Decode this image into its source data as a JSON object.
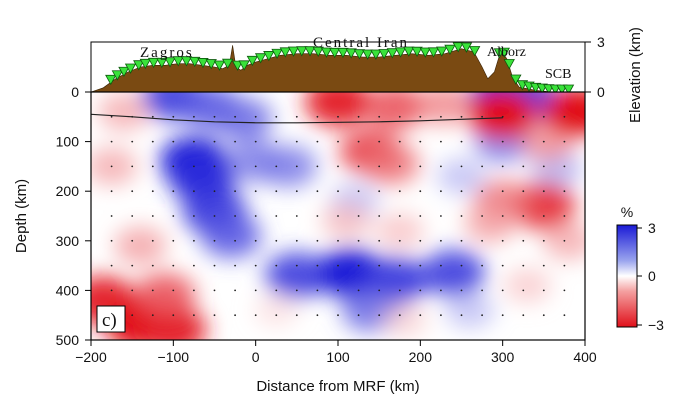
{
  "chart_data": {
    "type": "heatmap",
    "panel_label": "c)",
    "xlabel": "Distance from MRF (km)",
    "ylabel": "Depth (km)",
    "y2label": "Elevation (km)",
    "xlim": [
      -200,
      400
    ],
    "ylim": [
      500,
      0
    ],
    "elev_lim": [
      0,
      3
    ],
    "xticks": [
      "−200",
      "−100",
      "0",
      "100",
      "200",
      "300",
      "400"
    ],
    "yticks": [
      "0",
      "100",
      "200",
      "300",
      "400",
      "500"
    ],
    "elev_ticks": [
      "0",
      "3"
    ],
    "colorbar": {
      "unit": "%",
      "ticks": [
        "3",
        "0",
        "−3"
      ],
      "range": [
        -3,
        3
      ]
    },
    "regions": [
      "Zagros",
      "Central Iran",
      "Alborz",
      "SCB"
    ],
    "topography": {
      "x": [
        -200,
        -185,
        -170,
        -155,
        -140,
        -125,
        -110,
        -95,
        -80,
        -65,
        -50,
        -40,
        -32,
        -28,
        -24,
        -18,
        -10,
        0,
        15,
        30,
        50,
        70,
        90,
        110,
        130,
        150,
        170,
        190,
        210,
        230,
        250,
        265,
        275,
        282,
        290,
        298,
        305,
        312,
        320,
        340,
        360,
        380,
        400
      ],
      "elev": [
        0,
        0.25,
        0.8,
        1.2,
        1.5,
        1.6,
        1.6,
        1.7,
        1.7,
        1.6,
        1.5,
        1.4,
        1.6,
        2.8,
        1.5,
        1.3,
        1.6,
        1.8,
        2.0,
        2.2,
        2.3,
        2.3,
        2.2,
        2.2,
        2.1,
        2.1,
        2.2,
        2.3,
        2.2,
        2.3,
        2.6,
        2.4,
        1.5,
        0.8,
        1.2,
        2.5,
        2.0,
        0.9,
        0.3,
        0.1,
        0,
        0,
        0
      ]
    },
    "stations_x": [
      -176,
      -168,
      -160,
      -152,
      -142,
      -134,
      -124,
      -114,
      -104,
      -94,
      -84,
      -74,
      -64,
      -54,
      -44,
      -34,
      -22,
      -14,
      -4,
      6,
      16,
      26,
      36,
      46,
      56,
      66,
      76,
      86,
      96,
      106,
      116,
      126,
      136,
      146,
      156,
      166,
      176,
      186,
      196,
      206,
      216,
      226,
      236,
      246,
      256,
      266,
      296,
      302,
      308,
      316,
      324,
      332,
      340,
      348,
      356,
      364,
      372,
      380
    ],
    "moho": {
      "x": [
        -200,
        -150,
        -100,
        -50,
        0,
        50,
        100,
        150,
        200,
        250,
        300
      ],
      "depth": [
        45,
        50,
        56,
        60,
        62,
        62,
        61,
        60,
        58,
        55,
        52
      ]
    },
    "anomalies": [
      {
        "x": -100,
        "depth": 10,
        "value": 2.5
      },
      {
        "x": -55,
        "depth": 30,
        "value": 2.2
      },
      {
        "x": -15,
        "depth": 55,
        "value": 2.0
      },
      {
        "x": -75,
        "depth": 140,
        "value": 3.0
      },
      {
        "x": -65,
        "depth": 175,
        "value": 2.8
      },
      {
        "x": -50,
        "depth": 240,
        "value": 2.6
      },
      {
        "x": -30,
        "depth": 290,
        "value": 2.2
      },
      {
        "x": 0,
        "depth": 140,
        "value": 1.8
      },
      {
        "x": 40,
        "depth": 150,
        "value": 1.8
      },
      {
        "x": 120,
        "depth": 220,
        "value": 1.0
      },
      {
        "x": 50,
        "depth": 370,
        "value": 2.5
      },
      {
        "x": 115,
        "depth": 365,
        "value": 3.0
      },
      {
        "x": 170,
        "depth": 380,
        "value": 2.6
      },
      {
        "x": 240,
        "depth": 365,
        "value": 2.5
      },
      {
        "x": 140,
        "depth": 440,
        "value": 2.0
      },
      {
        "x": 250,
        "depth": 170,
        "value": 1.0
      },
      {
        "x": 300,
        "depth": 10,
        "value": 2.8
      },
      {
        "x": 330,
        "depth": 12,
        "value": 2.5
      },
      {
        "x": 300,
        "depth": 100,
        "value": 1.8
      },
      {
        "x": 365,
        "depth": 155,
        "value": 1.2
      },
      {
        "x": 260,
        "depth": 440,
        "value": 1.0
      },
      {
        "x": -160,
        "depth": 40,
        "value": -1.2
      },
      {
        "x": -175,
        "depth": 150,
        "value": -1.2
      },
      {
        "x": -140,
        "depth": 310,
        "value": -1.3
      },
      {
        "x": -185,
        "depth": 420,
        "value": -2.8
      },
      {
        "x": -140,
        "depth": 470,
        "value": -3.0
      },
      {
        "x": -100,
        "depth": 480,
        "value": -2.8
      },
      {
        "x": -110,
        "depth": 410,
        "value": -2.2
      },
      {
        "x": 100,
        "depth": 20,
        "value": -2.8
      },
      {
        "x": 170,
        "depth": 30,
        "value": -2.2
      },
      {
        "x": 230,
        "depth": 25,
        "value": -1.6
      },
      {
        "x": 140,
        "depth": 120,
        "value": -2.4
      },
      {
        "x": 165,
        "depth": 145,
        "value": -1.8
      },
      {
        "x": 110,
        "depth": 260,
        "value": -1.0
      },
      {
        "x": 175,
        "depth": 280,
        "value": -0.9
      },
      {
        "x": 300,
        "depth": 45,
        "value": -3.0
      },
      {
        "x": 355,
        "depth": 100,
        "value": -1.5
      },
      {
        "x": 390,
        "depth": 40,
        "value": -3.0
      },
      {
        "x": 350,
        "depth": 230,
        "value": -2.6
      },
      {
        "x": 300,
        "depth": 220,
        "value": -1.8
      },
      {
        "x": 285,
        "depth": 265,
        "value": -1.3
      },
      {
        "x": 380,
        "depth": 300,
        "value": -1.2
      },
      {
        "x": 330,
        "depth": 390,
        "value": -0.8
      },
      {
        "x": 180,
        "depth": 460,
        "value": -0.7
      },
      {
        "x": 25,
        "depth": 440,
        "value": -0.5
      }
    ],
    "grid_dots": {
      "x_start": -175,
      "x_step": 25,
      "depth_start": 50,
      "depth_step": 50
    }
  }
}
